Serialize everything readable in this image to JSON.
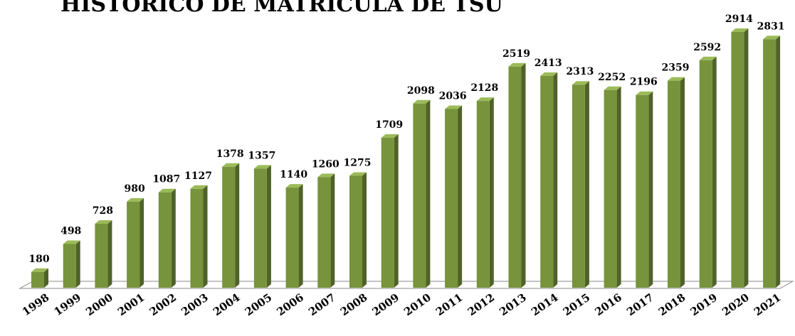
{
  "chart_data": {
    "type": "bar",
    "title": "HISTÓRICO DE MATRÍCULA DE TSU",
    "categories": [
      "1998",
      "1999",
      "2000",
      "2001",
      "2002",
      "2003",
      "2004",
      "2005",
      "2006",
      "2007",
      "2008",
      "2009",
      "2010",
      "2011",
      "2012",
      "2013",
      "2014",
      "2015",
      "2016",
      "2017",
      "2018",
      "2019",
      "2020",
      "2021"
    ],
    "values": [
      180,
      498,
      728,
      980,
      1087,
      1127,
      1378,
      1357,
      1140,
      1260,
      1275,
      1709,
      2098,
      2036,
      2128,
      2519,
      2413,
      2313,
      2252,
      2196,
      2359,
      2592,
      2914,
      2831
    ],
    "color": "#77933c"
  }
}
